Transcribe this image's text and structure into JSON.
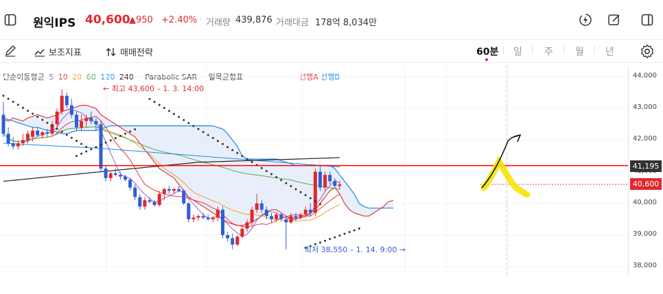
{
  "header": {
    "stock_name": "원익IPS",
    "price": "40,600",
    "change": "▲950",
    "change_rate": "+2.40%",
    "volume_label": "거래량",
    "volume_value": "439,876",
    "amount_label": "거래대금",
    "amount_value": "178억 8,034만"
  },
  "toolbar": {
    "aux_indicator_label": "보조지표",
    "strategy_label": "매매전략",
    "timeframes": [
      "60분",
      "일",
      "주",
      "월",
      "년"
    ],
    "active_timeframe": "60분"
  },
  "legend": {
    "ma_label": "단순이동평균",
    "ma_periods": [
      "5",
      "10",
      "20",
      "60",
      "120",
      "240"
    ],
    "ma_colors": [
      "#9b59d0",
      "#e53935",
      "#f59e2a",
      "#4caf50",
      "#1e88e5",
      "#222222"
    ],
    "psar_label": "Parabolic SAR",
    "ichimoku_label": "일목균형표",
    "span_a_label": "선행A",
    "span_b_label": "선행B"
  },
  "colors": {
    "up": "#e0282e",
    "down": "#2f5fd6",
    "span_a": "#e53935",
    "span_b": "#1e88e5",
    "cloud": "#dfe8f8",
    "current_line": "#ff0000",
    "highlight": "#f5e400"
  },
  "chart_data": {
    "type": "candlestick",
    "timeframe": "60분",
    "y_ticks": [
      "44,000",
      "43,000",
      "42,000",
      "41,000",
      "40,000",
      "39,000",
      "38,000"
    ],
    "ylim": [
      37900,
      44300
    ],
    "current_price": "40,600",
    "reference_price": "41,195",
    "annotations": {
      "high": "← 최고 43,600 – 1. 3. 14:00",
      "low": "최저 38,550 – 1. 14. 9:00 →"
    },
    "candles": [
      {
        "o": 42800,
        "h": 43200,
        "l": 42100,
        "c": 42200
      },
      {
        "o": 42200,
        "h": 42400,
        "l": 41800,
        "c": 41900
      },
      {
        "o": 41900,
        "h": 42100,
        "l": 41700,
        "c": 41800
      },
      {
        "o": 41800,
        "h": 42000,
        "l": 41700,
        "c": 41900
      },
      {
        "o": 41900,
        "h": 42200,
        "l": 41800,
        "c": 42000
      },
      {
        "o": 42000,
        "h": 42300,
        "l": 41900,
        "c": 42200
      },
      {
        "o": 42100,
        "h": 42400,
        "l": 41950,
        "c": 42300
      },
      {
        "o": 42300,
        "h": 42400,
        "l": 42100,
        "c": 42150
      },
      {
        "o": 42150,
        "h": 42300,
        "l": 42050,
        "c": 42250
      },
      {
        "o": 42250,
        "h": 42350,
        "l": 42100,
        "c": 42200
      },
      {
        "o": 42200,
        "h": 42600,
        "l": 42150,
        "c": 42500
      },
      {
        "o": 42500,
        "h": 43000,
        "l": 42400,
        "c": 42900
      },
      {
        "o": 42900,
        "h": 43600,
        "l": 42800,
        "c": 43400
      },
      {
        "o": 43400,
        "h": 43500,
        "l": 43000,
        "c": 43100
      },
      {
        "o": 43100,
        "h": 43300,
        "l": 42700,
        "c": 42800
      },
      {
        "o": 42800,
        "h": 42900,
        "l": 42300,
        "c": 42400
      },
      {
        "o": 42400,
        "h": 42800,
        "l": 42300,
        "c": 42600
      },
      {
        "o": 42600,
        "h": 42800,
        "l": 42400,
        "c": 42700
      },
      {
        "o": 42700,
        "h": 42900,
        "l": 42500,
        "c": 42600
      },
      {
        "o": 42600,
        "h": 42700,
        "l": 42300,
        "c": 42500
      },
      {
        "o": 42500,
        "h": 42600,
        "l": 41000,
        "c": 41100
      },
      {
        "o": 41100,
        "h": 41200,
        "l": 40700,
        "c": 40800
      },
      {
        "o": 40800,
        "h": 41000,
        "l": 40700,
        "c": 40950
      },
      {
        "o": 40950,
        "h": 41100,
        "l": 40850,
        "c": 40900
      },
      {
        "o": 40900,
        "h": 41000,
        "l": 40750,
        "c": 40850
      },
      {
        "o": 40850,
        "h": 40900,
        "l": 40700,
        "c": 40750
      },
      {
        "o": 40750,
        "h": 40800,
        "l": 40400,
        "c": 40500
      },
      {
        "o": 40500,
        "h": 40600,
        "l": 40100,
        "c": 40200
      },
      {
        "o": 40200,
        "h": 40300,
        "l": 39800,
        "c": 39900
      },
      {
        "o": 39900,
        "h": 40200,
        "l": 39800,
        "c": 40100
      },
      {
        "o": 40100,
        "h": 40200,
        "l": 40000,
        "c": 40050
      },
      {
        "o": 40050,
        "h": 40100,
        "l": 39900,
        "c": 39950
      },
      {
        "o": 39950,
        "h": 40400,
        "l": 39900,
        "c": 40300
      },
      {
        "o": 40300,
        "h": 40500,
        "l": 40100,
        "c": 40450
      },
      {
        "o": 40450,
        "h": 40550,
        "l": 40300,
        "c": 40400
      },
      {
        "o": 40400,
        "h": 40500,
        "l": 40300,
        "c": 40450
      },
      {
        "o": 40450,
        "h": 40550,
        "l": 40350,
        "c": 40400
      },
      {
        "o": 40400,
        "h": 40450,
        "l": 39950,
        "c": 40000
      },
      {
        "o": 40000,
        "h": 40050,
        "l": 39400,
        "c": 39500
      },
      {
        "o": 39500,
        "h": 39650,
        "l": 39400,
        "c": 39550
      },
      {
        "o": 39550,
        "h": 39650,
        "l": 39450,
        "c": 39600
      },
      {
        "o": 39600,
        "h": 39700,
        "l": 39500,
        "c": 39550
      },
      {
        "o": 39550,
        "h": 39650,
        "l": 39450,
        "c": 39500
      },
      {
        "o": 39500,
        "h": 39600,
        "l": 39400,
        "c": 39550
      },
      {
        "o": 39550,
        "h": 39900,
        "l": 39450,
        "c": 39800
      },
      {
        "o": 39800,
        "h": 39900,
        "l": 38900,
        "c": 39000
      },
      {
        "o": 39000,
        "h": 39100,
        "l": 38800,
        "c": 38900
      },
      {
        "o": 38900,
        "h": 39050,
        "l": 38550,
        "c": 38700
      },
      {
        "o": 38700,
        "h": 39000,
        "l": 38650,
        "c": 38950
      },
      {
        "o": 38950,
        "h": 39300,
        "l": 38900,
        "c": 39200
      },
      {
        "o": 39200,
        "h": 39500,
        "l": 39100,
        "c": 39400
      },
      {
        "o": 39400,
        "h": 39900,
        "l": 39300,
        "c": 39800
      },
      {
        "o": 39800,
        "h": 40300,
        "l": 39700,
        "c": 40000
      },
      {
        "o": 40000,
        "h": 40100,
        "l": 39700,
        "c": 39800
      },
      {
        "o": 39800,
        "h": 39900,
        "l": 39500,
        "c": 39600
      },
      {
        "o": 39600,
        "h": 39700,
        "l": 39400,
        "c": 39500
      },
      {
        "o": 39500,
        "h": 39700,
        "l": 39400,
        "c": 39650
      },
      {
        "o": 39650,
        "h": 39700,
        "l": 39450,
        "c": 39500
      },
      {
        "o": 39500,
        "h": 39600,
        "l": 38550,
        "c": 39400
      },
      {
        "o": 39400,
        "h": 39700,
        "l": 39350,
        "c": 39600
      },
      {
        "o": 39600,
        "h": 39700,
        "l": 39450,
        "c": 39550
      },
      {
        "o": 39550,
        "h": 39700,
        "l": 39500,
        "c": 39650
      },
      {
        "o": 39650,
        "h": 39900,
        "l": 39550,
        "c": 39800
      },
      {
        "o": 39800,
        "h": 40000,
        "l": 39600,
        "c": 39700
      },
      {
        "o": 39700,
        "h": 41100,
        "l": 39600,
        "c": 41000
      },
      {
        "o": 41000,
        "h": 41200,
        "l": 40400,
        "c": 40500
      },
      {
        "o": 40500,
        "h": 41000,
        "l": 40400,
        "c": 40900
      },
      {
        "o": 40900,
        "h": 41000,
        "l": 40600,
        "c": 40700
      },
      {
        "o": 40700,
        "h": 40800,
        "l": 40500,
        "c": 40550
      },
      {
        "o": 40550,
        "h": 40700,
        "l": 40450,
        "c": 40600
      }
    ],
    "span_a": [
      42650,
      42600,
      42700,
      42650,
      42600,
      42700,
      42750,
      42800,
      42750,
      42700,
      42750,
      42800,
      42900,
      42950,
      43000,
      43050,
      43100,
      43100,
      43050,
      43000,
      42800,
      42700,
      42600,
      42500,
      42400,
      42300,
      42200,
      42100,
      41900,
      41700,
      41500,
      41300,
      41100,
      41000,
      40900,
      40800,
      40600,
      40400,
      40200,
      40100,
      40000,
      39900,
      39800,
      39700,
      39600,
      39500,
      39400,
      39350,
      39300,
      39300,
      39350,
      39400,
      39500,
      39600,
      39700,
      39800,
      39800,
      39700,
      39600,
      39500,
      39500,
      39550,
      39600,
      39700,
      39800,
      40000,
      40200,
      40400,
      40500,
      40300,
      40000,
      39800,
      39700,
      39650,
      39600,
      39600,
      39700,
      39800,
      39900,
      40050,
      40100
    ],
    "span_b": [
      42700,
      42650,
      42600,
      42550,
      42500,
      42450,
      42400,
      42400,
      42350,
      42300,
      42300,
      42250,
      42200,
      42200,
      42250,
      42300,
      42300,
      42300,
      42300,
      42300,
      42350,
      42400,
      42450,
      42450,
      42450,
      42450,
      42450,
      42450,
      42450,
      42450,
      42450,
      42450,
      42450,
      42450,
      42450,
      42450,
      42450,
      42450,
      42450,
      42450,
      42450,
      42450,
      42450,
      42450,
      42400,
      42350,
      42200,
      42000,
      41800,
      41500,
      41400,
      41400,
      41400,
      41400,
      41400,
      41400,
      41400,
      41350,
      41300,
      41250,
      41200,
      41200,
      41200,
      41200,
      41200,
      41200,
      41200,
      41200,
      41100,
      40900,
      40700,
      40500,
      40300,
      40000,
      39900,
      39850,
      39850,
      39850,
      39850,
      39850,
      39850
    ]
  }
}
